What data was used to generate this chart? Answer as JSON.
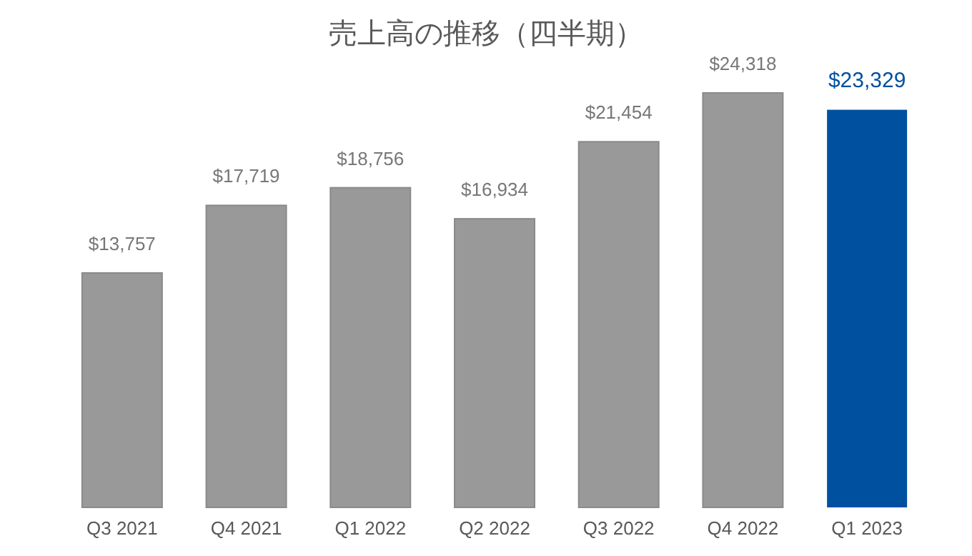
{
  "chart_data": {
    "type": "bar",
    "title": "売上高の推移（四半期）",
    "categories": [
      "Q3 2021",
      "Q4 2021",
      "Q1 2022",
      "Q2 2022",
      "Q3 2022",
      "Q4 2022",
      "Q1 2023"
    ],
    "values": [
      13757,
      17719,
      18756,
      16934,
      21454,
      24318,
      23329
    ],
    "colors": [
      "#999999",
      "#999999",
      "#999999",
      "#999999",
      "#999999",
      "#999999",
      "#0050a0"
    ],
    "value_labels": [
      "$13,757",
      "$17,719",
      "$18,756",
      "$16,934",
      "$21,454",
      "$24,318",
      "$23,329"
    ]
  }
}
